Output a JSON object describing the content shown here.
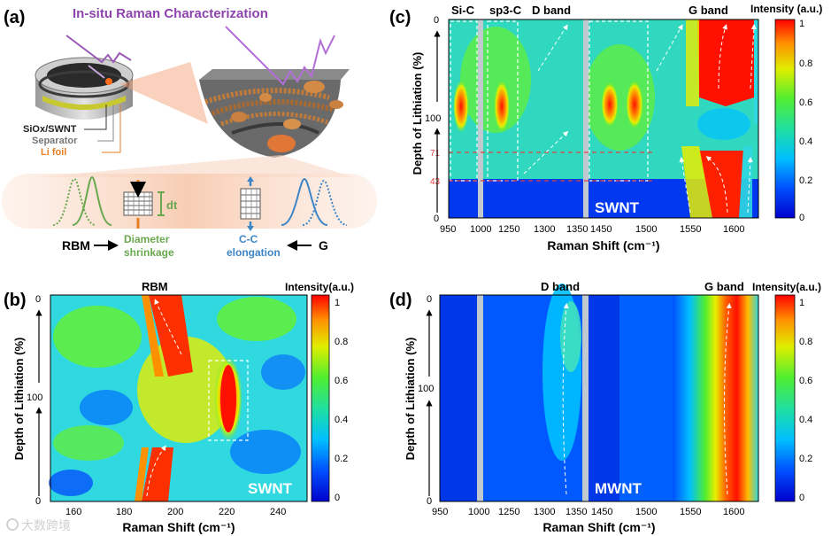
{
  "panel_a": {
    "label": "(a)",
    "title": "In-situ Raman Characterization",
    "layers": [
      "SiOx/SWNT",
      "Separator",
      "Li foil"
    ],
    "dt_label": "dt",
    "rbm_label": "RBM",
    "rbm_effect": [
      "Diameter",
      "shrinkage"
    ],
    "g_label": "G",
    "g_effect": [
      "C-C",
      "elongation"
    ],
    "colors": {
      "rbm": "#6aa84f",
      "g": "#3d85c6",
      "title": "#8e44ad",
      "li": "#e67e22"
    }
  },
  "panel_b": {
    "label": "(b)",
    "band_label": "RBM",
    "sample": "SWNT",
    "xlabel": "Raman Shift (cm⁻¹)",
    "ylabel": "Depth of Lithiation (%)",
    "xticks": [
      "160",
      "180",
      "200",
      "220",
      "240"
    ],
    "yticks": [
      "0",
      "100",
      "0"
    ],
    "cbar_title": "Intensity(a.u.)",
    "cbar_ticks": [
      "1",
      "0.8",
      "0.6",
      "0.4",
      "0.2",
      "0"
    ]
  },
  "panel_c": {
    "label": "(c)",
    "bands": [
      "Si-C",
      "sp3-C",
      "D band",
      "G band"
    ],
    "sample": "SWNT",
    "xlabel": "Raman Shift (cm⁻¹)",
    "ylabel": "Depth of Lithiation (%)",
    "xticks": [
      "950",
      "1000",
      "1250",
      "1300",
      "1350",
      "1450",
      "1500",
      "1550",
      "1600"
    ],
    "yticks": [
      "0",
      "100",
      "0"
    ],
    "marks": [
      "71",
      "43"
    ],
    "cbar_title": "Intensity (a.u.)",
    "cbar_ticks": [
      "1",
      "0.8",
      "0.6",
      "0.4",
      "0.2",
      "0"
    ]
  },
  "panel_d": {
    "label": "(d)",
    "bands": [
      "D band",
      "G band"
    ],
    "sample": "MWNT",
    "xlabel": "Raman Shift (cm⁻¹)",
    "ylabel": "Depth of Lithiation (%)",
    "xticks": [
      "950",
      "1000",
      "1250",
      "1300",
      "1350",
      "1450",
      "1500",
      "1550",
      "1600"
    ],
    "yticks": [
      "0",
      "100",
      "0"
    ],
    "cbar_title": "Intensity(a.u.)",
    "cbar_ticks": [
      "1",
      "0.8",
      "0.6",
      "0.4",
      "0.2",
      "0"
    ]
  },
  "watermark": "大数跨境",
  "chart_data": [
    {
      "type": "heatmap",
      "panel": "b",
      "title": "RBM",
      "xlabel": "Raman Shift (cm-1)",
      "ylabel": "Depth of Lithiation (%)",
      "xlim": [
        150,
        250
      ],
      "ylim_note": "0 (lithiation) -> 100 -> 0 (delithiation)",
      "zlim": [
        0,
        1
      ],
      "peak_cm": [
        195,
        220
      ],
      "annotations": [
        "SWNT"
      ]
    },
    {
      "type": "heatmap",
      "panel": "c",
      "xlabel": "Raman Shift (cm-1)",
      "ylabel": "Depth of Lithiation (%)",
      "x_segments": [
        [
          950,
          1000
        ],
        [
          1200,
          1350
        ],
        [
          1430,
          1620
        ]
      ],
      "depth_marks": [
        71,
        43
      ],
      "zlim": [
        0,
        1
      ],
      "bands": [
        "Si-C",
        "sp3-C",
        "D band",
        "G band"
      ],
      "annotations": [
        "SWNT"
      ]
    },
    {
      "type": "heatmap",
      "panel": "d",
      "xlabel": "Raman Shift (cm-1)",
      "ylabel": "Depth of Lithiation (%)",
      "x_segments": [
        [
          950,
          1000
        ],
        [
          1200,
          1350
        ],
        [
          1430,
          1620
        ]
      ],
      "zlim": [
        0,
        1
      ],
      "bands": [
        "D band",
        "G band"
      ],
      "annotations": [
        "MWNT"
      ]
    }
  ]
}
